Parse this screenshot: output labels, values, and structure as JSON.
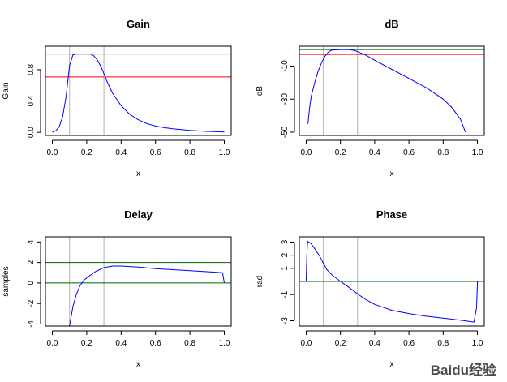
{
  "figure": {
    "watermark": "Baidu经验"
  },
  "colors": {
    "curve": "#0000ff",
    "threshold": "#ff0000",
    "reference": "#006400",
    "marker": "#bebebe"
  },
  "chart_data": [
    {
      "type": "line",
      "title": "Gain",
      "xlabel": "x",
      "ylabel": "Gain",
      "xlim": [
        -0.04,
        1.04
      ],
      "ylim": [
        -0.04,
        1.1
      ],
      "xticks": [
        0.0,
        0.2,
        0.4,
        0.6,
        0.8,
        1.0
      ],
      "xtick_labels": [
        "0.0",
        "0.2",
        "0.4",
        "0.6",
        "0.8",
        "1.0"
      ],
      "yticks": [
        0.0,
        0.4,
        0.8
      ],
      "ytick_labels": [
        "0.0",
        "0.4",
        "0.8"
      ],
      "vlines": [
        0.1,
        0.3
      ],
      "hlines": [
        {
          "y": 1.0,
          "color": "reference"
        },
        {
          "y": 0.707,
          "color": "threshold"
        }
      ],
      "series": [
        {
          "x": [
            0.0,
            0.02,
            0.04,
            0.06,
            0.08,
            0.1,
            0.12,
            0.14,
            0.16,
            0.18,
            0.2,
            0.22,
            0.24,
            0.26,
            0.28,
            0.3,
            0.32,
            0.35,
            0.4,
            0.45,
            0.5,
            0.55,
            0.6,
            0.65,
            0.7,
            0.8,
            0.9,
            1.0
          ],
          "y": [
            0.0,
            0.02,
            0.07,
            0.2,
            0.45,
            0.85,
            0.99,
            1.0,
            1.0,
            1.0,
            1.0,
            1.0,
            0.98,
            0.93,
            0.85,
            0.75,
            0.64,
            0.5,
            0.34,
            0.23,
            0.16,
            0.11,
            0.08,
            0.06,
            0.045,
            0.025,
            0.012,
            0.005
          ]
        }
      ]
    },
    {
      "type": "line",
      "title": "dB",
      "xlabel": "x",
      "ylabel": "dB",
      "xlim": [
        -0.04,
        1.04
      ],
      "ylim": [
        -52,
        2
      ],
      "xticks": [
        0.0,
        0.2,
        0.4,
        0.6,
        0.8,
        1.0
      ],
      "xtick_labels": [
        "0.0",
        "0.2",
        "0.4",
        "0.6",
        "0.8",
        "1.0"
      ],
      "yticks": [
        -50,
        -30,
        -10
      ],
      "ytick_labels": [
        "-50",
        "-30",
        "-10"
      ],
      "vlines": [
        0.1,
        0.3
      ],
      "hlines": [
        {
          "y": 0,
          "color": "reference"
        },
        {
          "y": -3,
          "color": "threshold"
        }
      ],
      "series": [
        {
          "x": [
            0.01,
            0.02,
            0.03,
            0.05,
            0.07,
            0.09,
            0.11,
            0.13,
            0.15,
            0.2,
            0.25,
            0.28,
            0.3,
            0.35,
            0.4,
            0.5,
            0.6,
            0.7,
            0.8,
            0.85,
            0.9,
            0.93
          ],
          "y": [
            -45,
            -35,
            -28,
            -20,
            -13,
            -8,
            -4,
            -1.5,
            -0.3,
            0.0,
            0.0,
            -0.5,
            -1.3,
            -3.5,
            -6.5,
            -12,
            -17.5,
            -23,
            -30,
            -35,
            -42,
            -50
          ]
        }
      ]
    },
    {
      "type": "line",
      "title": "Delay",
      "xlabel": "x",
      "ylabel": "samples",
      "xlim": [
        -0.04,
        1.04
      ],
      "ylim": [
        -4.2,
        4.5
      ],
      "xticks": [
        0.0,
        0.2,
        0.4,
        0.6,
        0.8,
        1.0
      ],
      "xtick_labels": [
        "0.0",
        "0.2",
        "0.4",
        "0.6",
        "0.8",
        "1.0"
      ],
      "yticks": [
        -4,
        -2,
        0,
        2,
        4
      ],
      "ytick_labels": [
        "-4",
        "-2",
        "0",
        "2",
        "4"
      ],
      "vlines": [
        0.1,
        0.3
      ],
      "hlines": [
        {
          "y": 2,
          "color": "reference"
        },
        {
          "y": 0,
          "color": "reference"
        }
      ],
      "series": [
        {
          "x": [
            0.1,
            0.12,
            0.14,
            0.16,
            0.18,
            0.2,
            0.25,
            0.3,
            0.35,
            0.4,
            0.5,
            0.6,
            0.7,
            0.8,
            0.9,
            0.99,
            1.0
          ],
          "y": [
            -4.2,
            -2.3,
            -1.1,
            -0.3,
            0.2,
            0.5,
            1.1,
            1.5,
            1.65,
            1.65,
            1.55,
            1.4,
            1.3,
            1.2,
            1.1,
            1.0,
            0.0
          ]
        }
      ]
    },
    {
      "type": "line",
      "title": "Phase",
      "xlabel": "x",
      "ylabel": "rad",
      "xlim": [
        -0.04,
        1.04
      ],
      "ylim": [
        -3.4,
        3.4
      ],
      "xticks": [
        0.0,
        0.2,
        0.4,
        0.6,
        0.8,
        1.0
      ],
      "xtick_labels": [
        "0.0",
        "0.2",
        "0.4",
        "0.6",
        "0.8",
        "1.0"
      ],
      "yticks": [
        -3,
        -1,
        1,
        2,
        3
      ],
      "ytick_labels": [
        "-3",
        "-1",
        "1",
        "2",
        "3"
      ],
      "vlines": [
        0.1,
        0.3
      ],
      "hlines": [
        {
          "y": 0,
          "color": "reference"
        }
      ],
      "series": [
        {
          "x": [
            0.0,
            0.004,
            0.008,
            0.01,
            0.03,
            0.05,
            0.08,
            0.1,
            0.12,
            0.15,
            0.2,
            0.25,
            0.3,
            0.35,
            0.4,
            0.5,
            0.6,
            0.7,
            0.8,
            0.9,
            0.98,
            0.995,
            1.0
          ],
          "y": [
            0.0,
            2.0,
            3.0,
            3.05,
            2.85,
            2.5,
            1.9,
            1.4,
            0.9,
            0.5,
            0.0,
            -0.45,
            -0.95,
            -1.4,
            -1.75,
            -2.2,
            -2.45,
            -2.65,
            -2.8,
            -2.95,
            -3.1,
            -2.0,
            0.0
          ]
        }
      ]
    }
  ]
}
